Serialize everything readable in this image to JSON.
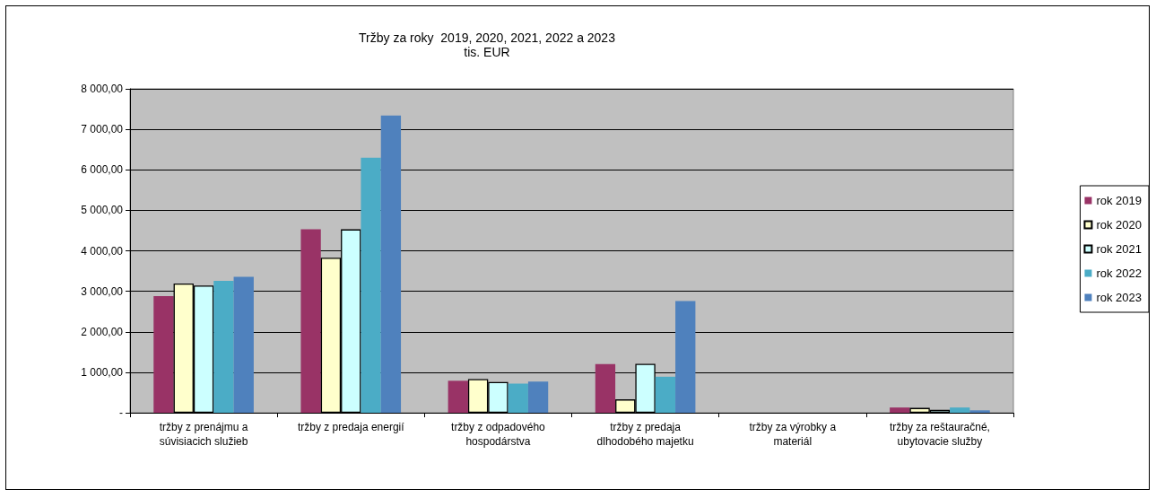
{
  "chart_data": {
    "type": "bar",
    "title": "Tržby za roky  2019, 2020, 2021, 2022 a 2023",
    "subtitle": "tis. EUR",
    "categories": [
      "tržby z prenájmu a\nsúvisiacich služieb",
      "tržby z predaja energií",
      "tržby z odpadového\nhospodárstva",
      "tržby z predaja\ndlhodobého majetku",
      "tržby za výrobky a\nmateriál",
      "tržby za reštauračné,\nubytovacie služby"
    ],
    "series": [
      {
        "name": "rok 2019",
        "color": "#993366",
        "values": [
          2880,
          4530,
          790,
          1200,
          null,
          130
        ]
      },
      {
        "name": "rok 2020",
        "color": "#ffffcc",
        "values": [
          3190,
          3830,
          830,
          330,
          null,
          120
        ]
      },
      {
        "name": "rok 2021",
        "color": "#ccffff",
        "values": [
          3140,
          4530,
          760,
          1210,
          null,
          70
        ]
      },
      {
        "name": "rok 2022",
        "color": "#4bacc6",
        "values": [
          3260,
          6300,
          720,
          890,
          null,
          130
        ]
      },
      {
        "name": "rok 2023",
        "color": "#4f81bd",
        "values": [
          3360,
          7340,
          770,
          2760,
          null,
          60
        ]
      }
    ],
    "ylim": [
      0,
      8000
    ],
    "yticks": [
      {
        "value": 0,
        "label": "-"
      },
      {
        "value": 1000,
        "label": "1 000,00"
      },
      {
        "value": 2000,
        "label": "2 000,00"
      },
      {
        "value": 3000,
        "label": "3 000,00"
      },
      {
        "value": 4000,
        "label": "4 000,00"
      },
      {
        "value": 5000,
        "label": "5 000,00"
      },
      {
        "value": 6000,
        "label": "6 000,00"
      },
      {
        "value": 7000,
        "label": "7 000,00"
      },
      {
        "value": 8000,
        "label": "8 000,00"
      }
    ],
    "grid": "y",
    "legend": "right"
  }
}
